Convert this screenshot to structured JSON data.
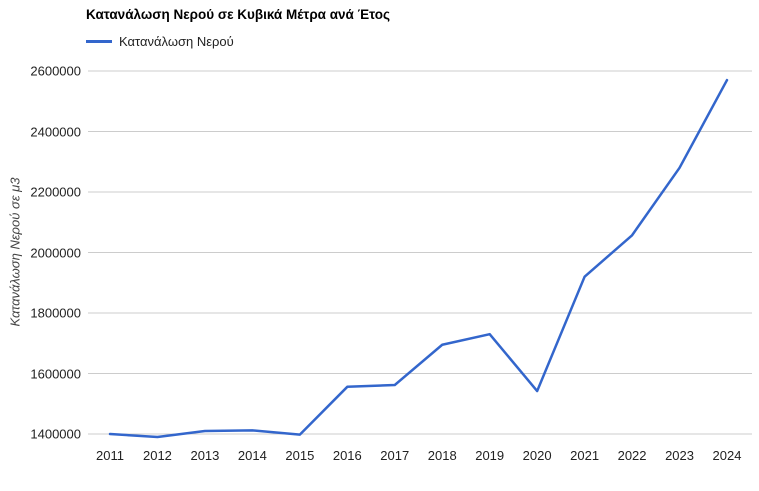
{
  "chart_data": {
    "type": "line",
    "title": "Κατανάλωση Νερού σε Κυβικά Μέτρα ανά Έτος",
    "legend": "Κατανάλωση Νερού",
    "xlabel": "",
    "ylabel": "Κατανάλωση Νερού σε μ3",
    "categories": [
      "2011",
      "2012",
      "2013",
      "2014",
      "2015",
      "2016",
      "2017",
      "2018",
      "2019",
      "2020",
      "2021",
      "2022",
      "2023",
      "2024"
    ],
    "series": [
      {
        "name": "Κατανάλωση Νερού",
        "color": "#3366cc",
        "values": [
          1400000,
          1390000,
          1410000,
          1412000,
          1398000,
          1556000,
          1562000,
          1695000,
          1730000,
          1542000,
          1920000,
          2057000,
          2280000,
          2570000
        ]
      }
    ],
    "ylim": [
      1400000,
      2600000
    ],
    "ytick_step": 200000,
    "ytick_labels": [
      "1400000",
      "1600000",
      "1800000",
      "2000000",
      "2200000",
      "2400000",
      "2600000"
    ],
    "grid": "horizontal",
    "gridline_color": "#cccccc",
    "legend_position": "top-left",
    "background_color": "#ffffff"
  }
}
